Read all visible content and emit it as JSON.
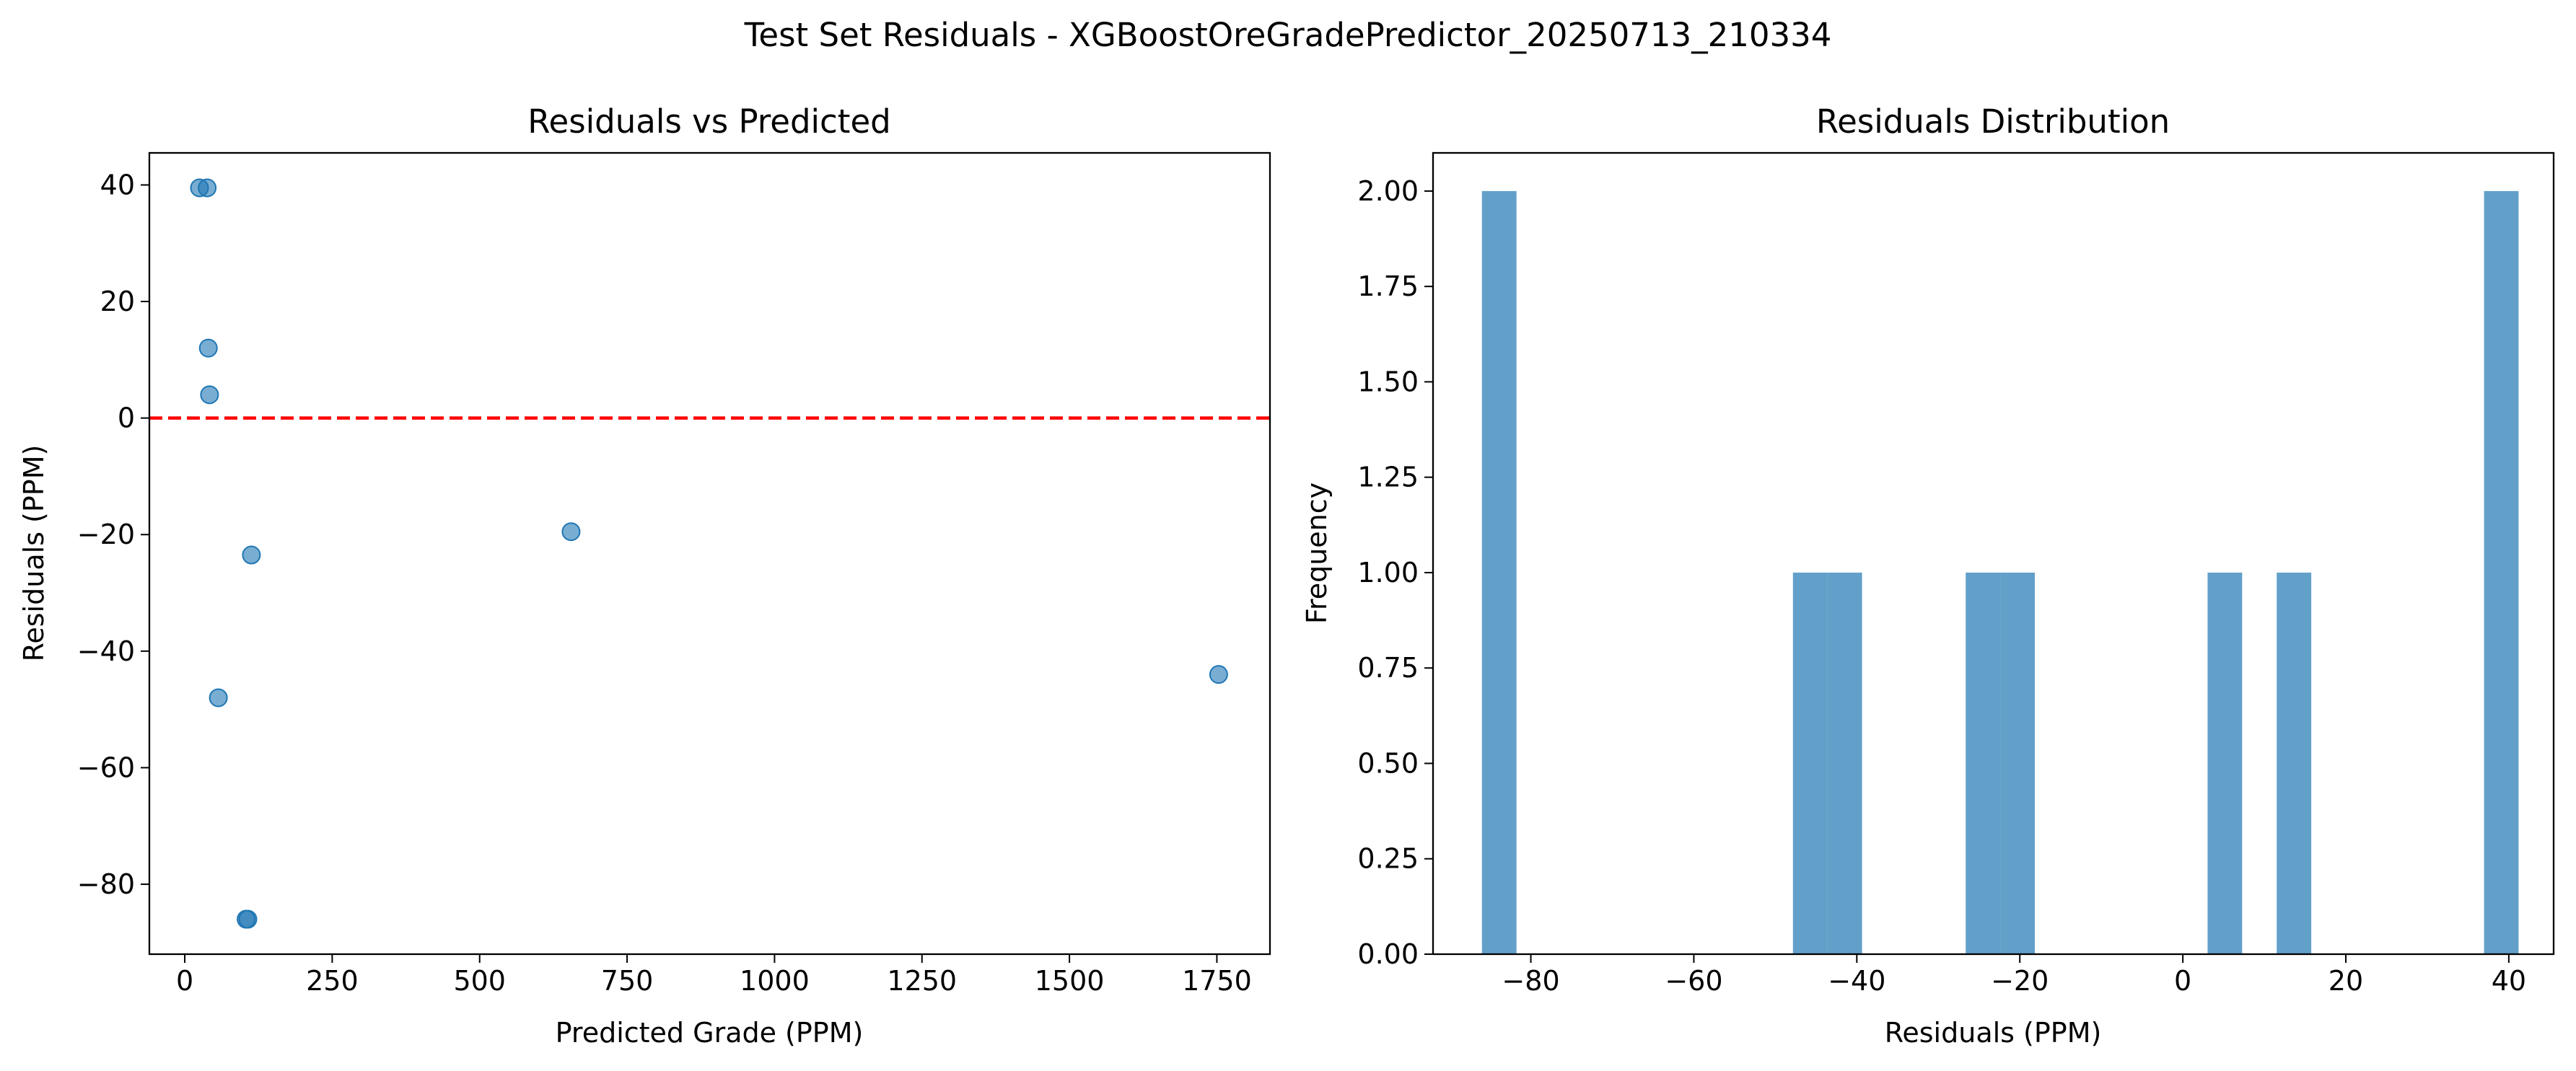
{
  "figure": {
    "suptitle": "Test Set Residuals - XGBoostOreGradePredictor_20250713_210334"
  },
  "chart_data": [
    {
      "type": "scatter",
      "title": "Residuals vs Predicted",
      "xlabel": "Predicted Grade (PPM)",
      "ylabel": "Residuals (PPM)",
      "xlim": [
        -60,
        1840
      ],
      "ylim": [
        -92,
        45.5
      ],
      "xticks": [
        0,
        250,
        500,
        750,
        1000,
        1250,
        1500,
        1750
      ],
      "xtick_labels": [
        "0",
        "250",
        "500",
        "750",
        "1000",
        "1250",
        "1500",
        "1750"
      ],
      "yticks": [
        -80,
        -60,
        -40,
        -20,
        0,
        20,
        40
      ],
      "ytick_labels": [
        "−80",
        "−60",
        "−40",
        "−20",
        "0",
        "20",
        "40"
      ],
      "points": [
        {
          "x": 25,
          "y": 39.5
        },
        {
          "x": 38,
          "y": 39.5
        },
        {
          "x": 40,
          "y": 12
        },
        {
          "x": 42,
          "y": 4
        },
        {
          "x": 113,
          "y": -23.5
        },
        {
          "x": 57,
          "y": -48
        },
        {
          "x": 104,
          "y": -86
        },
        {
          "x": 107,
          "y": -86
        },
        {
          "x": 655,
          "y": -19.5
        },
        {
          "x": 1753,
          "y": -44
        }
      ],
      "reference_line": {
        "y": 0,
        "color": "#ff0000",
        "style": "dashed"
      },
      "point_color": "#1f77b4",
      "point_alpha": 0.6,
      "grid": false
    },
    {
      "type": "bar",
      "subtype": "histogram",
      "title": "Residuals Distribution",
      "xlabel": "Residuals (PPM)",
      "ylabel": "Frequency",
      "xlim": [
        -92,
        45.5
      ],
      "ylim": [
        0,
        2.1
      ],
      "xticks": [
        -80,
        -60,
        -40,
        -20,
        0,
        20,
        40
      ],
      "xtick_labels": [
        "−80",
        "−60",
        "−40",
        "−20",
        "0",
        "20",
        "40"
      ],
      "yticks": [
        0,
        0.25,
        0.5,
        0.75,
        1.0,
        1.25,
        1.5,
        1.75,
        2.0
      ],
      "ytick_labels": [
        "0.00",
        "0.25",
        "0.50",
        "0.75",
        "1.00",
        "1.25",
        "1.50",
        "1.75",
        "2.00"
      ],
      "bin_edges": [
        -86,
        -81.76,
        -77.52,
        -73.28,
        -69.04,
        -64.8,
        -60.56,
        -56.32,
        -52.08,
        -47.84,
        -43.6,
        -39.36,
        -35.12,
        -30.88,
        -26.64,
        -22.4,
        -18.16,
        -13.92,
        -9.68,
        -5.44,
        -1.2,
        3.04,
        7.28,
        11.52,
        15.76,
        20,
        24.24,
        28.48,
        32.72,
        36.96,
        41.2
      ],
      "counts": [
        2,
        0,
        0,
        0,
        0,
        0,
        0,
        0,
        0,
        1,
        1,
        0,
        0,
        0,
        1,
        1,
        0,
        0,
        0,
        0,
        0,
        1,
        0,
        1,
        0,
        0,
        0,
        0,
        0,
        2
      ],
      "bar_color": "#1f77b4",
      "bar_alpha": 0.7,
      "grid": false
    }
  ]
}
